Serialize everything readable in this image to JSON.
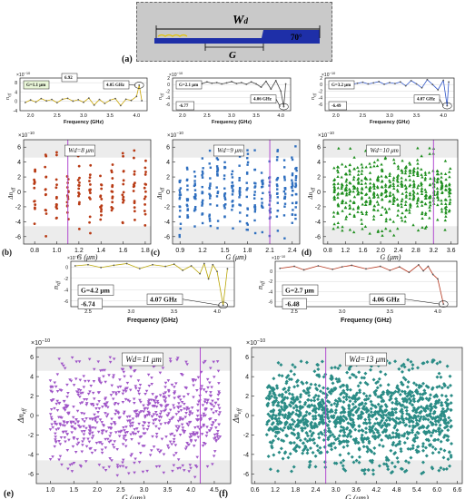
{
  "labels": {
    "a": "(a)",
    "b": "(b)",
    "c": "(c)",
    "d": "(d)",
    "e": "(e)",
    "f": "(f)",
    "wd_symbol": "W",
    "wd_sub": "d",
    "g_symbol": "G",
    "angle": "70°",
    "x_axis_g": "G (μm)",
    "x_axis_freq": "Frequency (GHz)",
    "y_axis_scatter": "Δn",
    "y_axis_scatter_sub": "eff",
    "y_axis_mini": "n",
    "y_axis_mini_sub": "eff",
    "exp": "×10",
    "exp_pow": "−10"
  },
  "colors": {
    "b": "#b83a14",
    "c": "#2f6fbf",
    "d": "#1f8f1f",
    "e": "#a056c8",
    "f": "#2a8c86",
    "marker": "#b24bd0",
    "band": "#ececec"
  },
  "chart_data": [
    {
      "panel": "mini-b",
      "type": "line",
      "title": "G=1.1 μm",
      "xlabel": "Frequency (GHz)",
      "ylabel": "neff",
      "annotations": [
        "6.92",
        "4.05 GHz"
      ],
      "xlim": [
        1.8,
        4.2
      ],
      "ylim": [
        -4,
        10
      ],
      "xticks": [
        "2.0",
        "2.5",
        "3.0",
        "3.5",
        "4.0"
      ],
      "yticks": [
        "-4",
        "0",
        "4",
        "8"
      ],
      "x": [
        1.9,
        2.0,
        2.1,
        2.2,
        2.3,
        2.4,
        2.5,
        2.6,
        2.7,
        2.8,
        2.9,
        3.0,
        3.1,
        3.2,
        3.3,
        3.4,
        3.5,
        3.6,
        3.7,
        3.8,
        3.9,
        4.0,
        4.05,
        4.1
      ],
      "y": [
        -0.5,
        0.6,
        -0.3,
        1.2,
        0.2,
        0.8,
        -0.6,
        0.9,
        1.3,
        0.1,
        0.7,
        -0.4,
        1.4,
        -1.6,
        0.8,
        -0.9,
        0.5,
        1.2,
        -1.8,
        0.9,
        0.4,
        2.1,
        6.92,
        0.3
      ]
    },
    {
      "panel": "mini-c",
      "type": "line",
      "title": "G=2.1 μm",
      "xlabel": "Frequency (GHz)",
      "ylabel": "neff",
      "annotations": [
        "-6.77",
        "4.06 GHz"
      ],
      "xlim": [
        1.8,
        4.2
      ],
      "ylim": [
        -8,
        2
      ],
      "xticks": [
        "2.0",
        "2.5",
        "3.0",
        "3.5",
        "4.0"
      ],
      "yticks": [
        "-6",
        "-4",
        "-2",
        "0",
        "2"
      ],
      "x": [
        1.9,
        2.0,
        2.1,
        2.2,
        2.3,
        2.4,
        2.5,
        2.6,
        2.7,
        2.8,
        2.9,
        3.0,
        3.1,
        3.2,
        3.3,
        3.4,
        3.5,
        3.6,
        3.7,
        3.8,
        3.9,
        4.0,
        4.06,
        4.1
      ],
      "y": [
        0.5,
        0.2,
        0.6,
        0.4,
        0.7,
        0.3,
        0.8,
        0.4,
        0.6,
        0.2,
        0.5,
        0.9,
        0.3,
        0.6,
        0.1,
        0.8,
        0.2,
        -0.8,
        1.0,
        -1.4,
        1.2,
        -2.0,
        -6.77,
        0.2
      ]
    },
    {
      "panel": "mini-d",
      "type": "line",
      "title": "G=3.2 μm",
      "xlabel": "Frequency (GHz)",
      "ylabel": "neff",
      "annotations": [
        "-6.49",
        "4.07 GHz"
      ],
      "xlim": [
        1.8,
        4.2
      ],
      "ylim": [
        -8,
        2
      ],
      "xticks": [
        "2.0",
        "2.5",
        "3.0",
        "3.5",
        "4.0"
      ],
      "yticks": [
        "-6",
        "-4",
        "-2",
        "0",
        "2"
      ],
      "x": [
        1.9,
        2.0,
        2.1,
        2.2,
        2.3,
        2.4,
        2.5,
        2.6,
        2.7,
        2.8,
        2.9,
        3.0,
        3.1,
        3.2,
        3.3,
        3.4,
        3.5,
        3.6,
        3.7,
        3.8,
        3.9,
        4.0,
        4.07,
        4.1
      ],
      "y": [
        0.3,
        0.6,
        0.2,
        0.8,
        0.1,
        0.4,
        0.7,
        0.2,
        0.5,
        0.9,
        0.1,
        0.6,
        0.3,
        0.8,
        -0.4,
        1.2,
        0.2,
        -1.0,
        1.5,
        0.0,
        -1.6,
        1.3,
        -6.49,
        0.8
      ]
    },
    {
      "panel": "mini-e",
      "type": "line",
      "title": "G=4.2 μm",
      "xlabel": "Frequency (GHz)",
      "ylabel": "neff",
      "annotations": [
        "-6.74",
        "4.07 GHz"
      ],
      "xlim": [
        2.3,
        4.2
      ],
      "ylim": [
        -7,
        1
      ],
      "xticks": [
        "2.5",
        "3.0",
        "3.5",
        "4.0"
      ],
      "yticks": [
        "-6",
        "-4",
        "-2",
        "0"
      ],
      "x": [
        2.35,
        2.5,
        2.65,
        2.8,
        2.95,
        3.1,
        3.25,
        3.4,
        3.5,
        3.6,
        3.7,
        3.8,
        3.85,
        3.9,
        3.95,
        4.0,
        4.07,
        4.12
      ],
      "y": [
        0.2,
        0.4,
        -0.1,
        0.3,
        0.6,
        -0.3,
        0.4,
        0.1,
        0.5,
        -0.6,
        0.2,
        -1.2,
        0.6,
        -2.1,
        0.4,
        -0.8,
        -6.74,
        -0.3
      ]
    },
    {
      "panel": "mini-f",
      "type": "line",
      "title": "G=2.7 μm",
      "xlabel": "Frequency (GHz)",
      "ylabel": "neff",
      "annotations": [
        "-6.48",
        "4.06 GHz"
      ],
      "xlim": [
        2.3,
        4.2
      ],
      "ylim": [
        -7,
        2
      ],
      "xticks": [
        "2.5",
        "3.0",
        "3.5",
        "4.0"
      ],
      "yticks": [
        "-6",
        "-4",
        "-2",
        "0"
      ],
      "x": [
        2.35,
        2.5,
        2.6,
        2.75,
        2.9,
        3.0,
        3.1,
        3.25,
        3.4,
        3.5,
        3.6,
        3.7,
        3.8,
        3.85,
        3.9,
        3.95,
        4.0,
        4.06
      ],
      "y": [
        0.6,
        1.0,
        0.3,
        1.1,
        0.4,
        0.9,
        1.2,
        0.5,
        1.0,
        0.2,
        0.9,
        -0.2,
        1.3,
        0.1,
        1.0,
        -0.6,
        -1.5,
        -6.48
      ]
    },
    {
      "panel": "b",
      "type": "scatter",
      "title": "Wd=8 μm",
      "xlabel": "G (μm)",
      "ylabel": "Δneff",
      "xlim": [
        0.7,
        1.85
      ],
      "ylim": [
        -7,
        7
      ],
      "xticks": [
        "0.8",
        "1.0",
        "1.2",
        "1.4",
        "1.6",
        "1.8"
      ],
      "yticks": [
        "-6",
        "-4",
        "-2",
        "0",
        "2",
        "4",
        "6"
      ],
      "marker_x": 1.1,
      "columns": 11,
      "spread": 3.2,
      "x": [
        0.8,
        0.9,
        1.0,
        1.1,
        1.2,
        1.3,
        1.4,
        1.5,
        1.6,
        1.7,
        1.8
      ]
    },
    {
      "panel": "c",
      "type": "scatter",
      "title": "Wd=9 μm",
      "xlabel": "G (μm)",
      "ylabel": "Δneff",
      "xlim": [
        0.8,
        2.5
      ],
      "ylim": [
        -7,
        7
      ],
      "xticks": [
        "0.9",
        "1.2",
        "1.5",
        "1.8",
        "2.1",
        "2.4"
      ],
      "yticks": [
        "-6",
        "-4",
        "-2",
        "0",
        "2",
        "4",
        "6"
      ],
      "marker_x": 2.1,
      "columns": 17,
      "spread": 3.4,
      "x": [
        0.9,
        1.0,
        1.1,
        1.2,
        1.3,
        1.4,
        1.5,
        1.6,
        1.7,
        1.8,
        1.9,
        2.0,
        2.1,
        2.2,
        2.3,
        2.4,
        2.45
      ]
    },
    {
      "panel": "d",
      "type": "scatter",
      "title": "Wd=10 μm",
      "xlabel": "G (μm)",
      "ylabel": "Δneff",
      "xlim": [
        0.7,
        3.75
      ],
      "ylim": [
        -7,
        7
      ],
      "xticks": [
        "0.8",
        "1.2",
        "1.6",
        "2.0",
        "2.4",
        "2.8",
        "3.2",
        "3.6"
      ],
      "yticks": [
        "-6",
        "-4",
        "-2",
        "0",
        "2",
        "4",
        "6"
      ],
      "marker_x": 3.2,
      "columns": 30,
      "spread": 3.1
    },
    {
      "panel": "e",
      "type": "scatter",
      "title": "Wd=11 μm",
      "xlabel": "G (μm)",
      "ylabel": "Δneff",
      "xlim": [
        0.7,
        4.85
      ],
      "ylim": [
        -7,
        7
      ],
      "xticks": [
        "1.0",
        "1.5",
        "2.0",
        "2.5",
        "3.0",
        "3.5",
        "4.0",
        "4.5"
      ],
      "yticks": [
        "-6",
        "-4",
        "-2",
        "0",
        "2",
        "4",
        "6"
      ],
      "marker_x": 4.2,
      "columns": 41,
      "spread": 3.6
    },
    {
      "panel": "f",
      "type": "scatter",
      "title": "Wd=13 μm",
      "xlabel": "G (μm)",
      "ylabel": "Δneff",
      "xlim": [
        0.5,
        6.75
      ],
      "ylim": [
        -7,
        7
      ],
      "xticks": [
        "0.6",
        "1.2",
        "1.8",
        "2.4",
        "3.0",
        "3.6",
        "4.2",
        "4.8",
        "5.4",
        "6.0",
        "6.6"
      ],
      "yticks": [
        "-6",
        "-4",
        "-2",
        "0",
        "2",
        "4",
        "6"
      ],
      "marker_x": 2.7,
      "columns": 60,
      "spread": 3.3
    }
  ]
}
